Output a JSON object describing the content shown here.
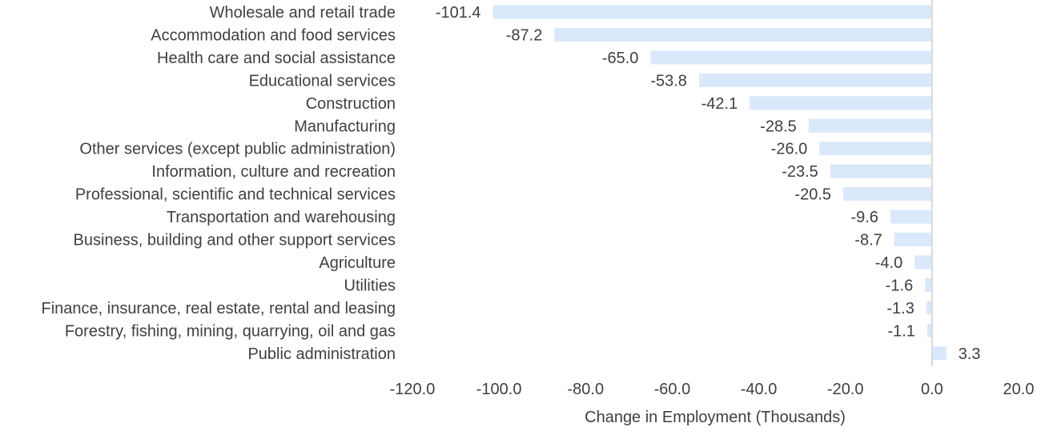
{
  "chart_data": {
    "type": "bar",
    "orientation": "horizontal",
    "categories": [
      "Wholesale and retail trade",
      "Accommodation and food services",
      "Health care and social assistance",
      "Educational services",
      "Construction",
      "Manufacturing",
      "Other services (except public administration)",
      "Information, culture and recreation",
      "Professional, scientific and technical services",
      "Transportation and warehousing",
      "Business, building and other support services",
      "Agriculture",
      "Utilities",
      "Finance, insurance, real estate, rental and leasing",
      "Forestry, fishing, mining, quarrying, oil and gas",
      "Public administration"
    ],
    "values": [
      -101.4,
      -87.2,
      -65.0,
      -53.8,
      -42.1,
      -28.5,
      -26.0,
      -23.5,
      -20.5,
      -9.6,
      -8.7,
      -4.0,
      -1.6,
      -1.3,
      -1.1,
      3.3
    ],
    "value_labels": [
      "-101.4",
      "-87.2",
      "-65.0",
      "-53.8",
      "-42.1",
      "-28.5",
      "-26.0",
      "-23.5",
      "-20.5",
      "-9.6",
      "-8.7",
      "-4.0",
      "-1.6",
      "-1.3",
      "-1.1",
      "3.3"
    ],
    "xlim": [
      -120,
      20
    ],
    "xticks": [
      -120,
      -100,
      -80,
      -60,
      -40,
      -20,
      0,
      20
    ],
    "xtick_labels": [
      "-120.0",
      "-100.0",
      "-80.0",
      "-60.0",
      "-40.0",
      "-20.0",
      "0.0",
      "20.0"
    ],
    "xlabel": "Change in Employment (Thousands)",
    "ylabel": "",
    "title": "",
    "grid": false,
    "legend": "none",
    "colors": {
      "bar": "#dae8fc",
      "zero_line": "#d9d9d9",
      "text": "#404040"
    }
  }
}
